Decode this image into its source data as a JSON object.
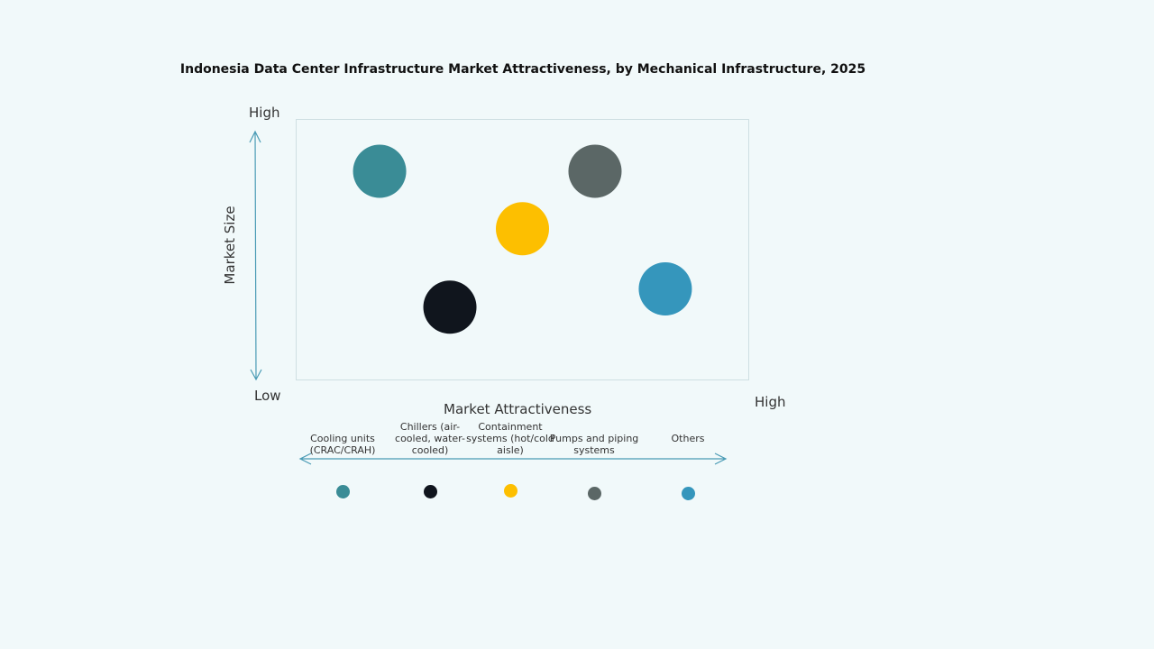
{
  "chart_data": {
    "type": "scatter",
    "title": "Indonesia Data Center Infrastructure Market Attractiveness,  by Mechanical Infrastructure,  2025",
    "xlabel": "Market Attractiveness",
    "ylabel": "Market Size",
    "x_low_label": "Low",
    "x_high_label": "High",
    "y_high_label": "High",
    "xlim": [
      0,
      100
    ],
    "ylim": [
      0,
      100
    ],
    "grid": false,
    "legend_placement": "bottom",
    "series": [
      {
        "name": "Cooling units (CRAC/CRAH)",
        "x": 18.5,
        "y": 80,
        "color": "#3a8c96"
      },
      {
        "name": "Chillers (air-cooled, water-cooled)",
        "x": 34,
        "y": 28,
        "color": "#10151d"
      },
      {
        "name": "Containment systems (hot/cold aisle)",
        "x": 50,
        "y": 58,
        "color": "#fdbf00"
      },
      {
        "name": "Pumps and piping systems",
        "x": 66,
        "y": 80,
        "color": "#5b6766"
      },
      {
        "name": "Others",
        "x": 81.5,
        "y": 35,
        "color": "#3596bc"
      }
    ]
  },
  "arrow_color": "#4a9bb5"
}
